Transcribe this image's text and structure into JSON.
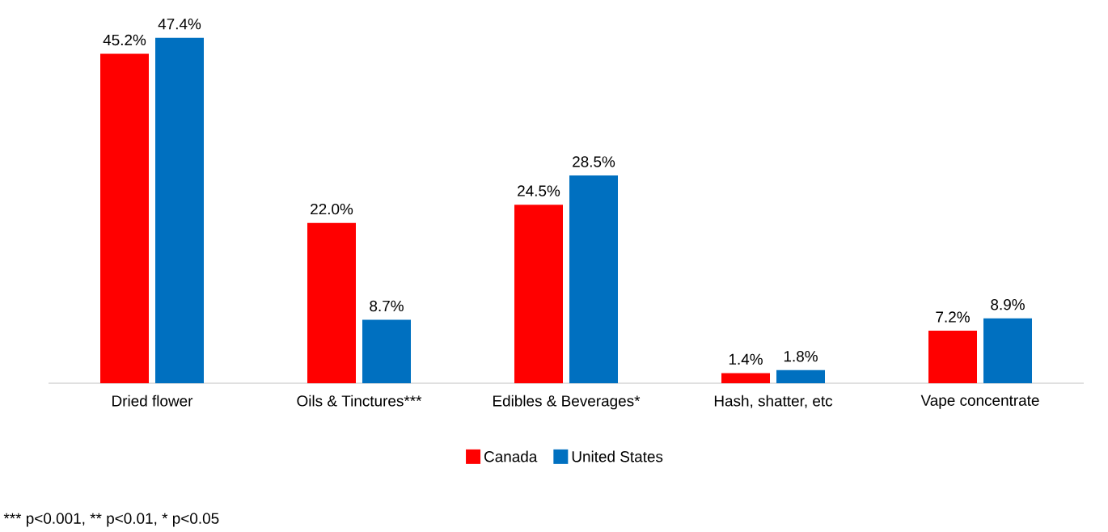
{
  "chart_data": {
    "type": "bar",
    "relative": false,
    "data_labels": true,
    "legend": "bottom",
    "categories": [
      "Dried flower",
      "Oils & Tinctures***",
      "Edibles & Beverages*",
      "Hash, shatter, etc",
      "Vape concentrate"
    ],
    "series": [
      {
        "name": "Canada",
        "color": "#ff0000",
        "values": [
          45.2,
          22.0,
          24.5,
          1.4,
          7.2
        ],
        "value_labels": [
          "45.2%",
          "22.0%",
          "24.5%",
          "1.4%",
          "7.2%"
        ]
      },
      {
        "name": "United States",
        "color": "#0070c0",
        "values": [
          47.4,
          8.7,
          28.5,
          1.8,
          8.9
        ],
        "value_labels": [
          "47.4%",
          "8.7%",
          "28.5%",
          "1.8%",
          "8.9%"
        ]
      }
    ],
    "annotations": [
      "*** p<0.001, ** p<0.01, * p<0.05"
    ]
  }
}
